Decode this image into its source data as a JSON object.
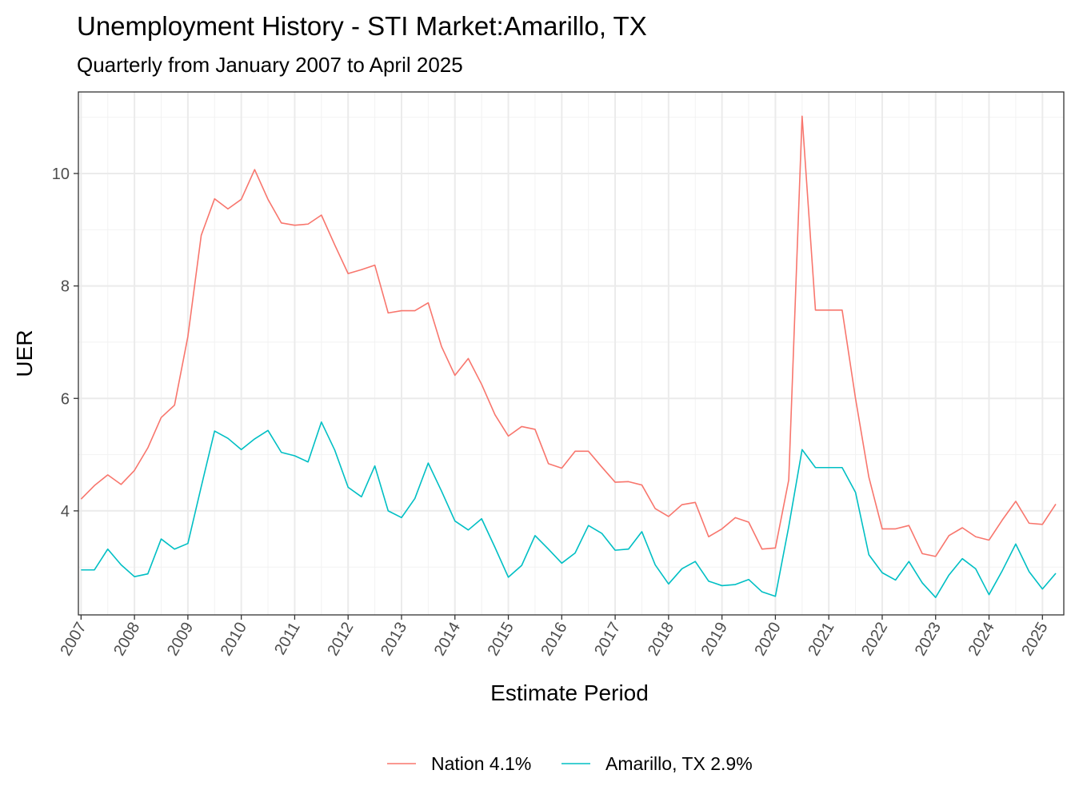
{
  "chart_data": {
    "type": "line",
    "title": "Unemployment History - STI Market:Amarillo, TX",
    "subtitle": "Quarterly from January 2007 to April 2025",
    "xlabel": "Estimate Period",
    "ylabel": "UER",
    "xlim": [
      2006.95,
      2025.4
    ],
    "ylim": [
      2.15,
      11.45
    ],
    "x_ticks": [
      "2007",
      "2008",
      "2009",
      "2010",
      "2011",
      "2012",
      "2013",
      "2014",
      "2015",
      "2016",
      "2017",
      "2018",
      "2019",
      "2020",
      "2021",
      "2022",
      "2023",
      "2024",
      "2025"
    ],
    "y_ticks": [
      "4",
      "6",
      "8",
      "10"
    ],
    "grid": true,
    "legend_position": "bottom",
    "x": [
      2007.0,
      2007.25,
      2007.5,
      2007.75,
      2008.0,
      2008.25,
      2008.5,
      2008.75,
      2009.0,
      2009.25,
      2009.5,
      2009.75,
      2010.0,
      2010.25,
      2010.5,
      2010.75,
      2011.0,
      2011.25,
      2011.5,
      2011.75,
      2012.0,
      2012.25,
      2012.5,
      2012.75,
      2013.0,
      2013.25,
      2013.5,
      2013.75,
      2014.0,
      2014.25,
      2014.5,
      2014.75,
      2015.0,
      2015.25,
      2015.5,
      2015.75,
      2016.0,
      2016.25,
      2016.5,
      2016.75,
      2017.0,
      2017.25,
      2017.5,
      2017.75,
      2018.0,
      2018.25,
      2018.5,
      2018.75,
      2019.0,
      2019.25,
      2019.5,
      2019.75,
      2020.0,
      2020.25,
      2020.5,
      2020.75,
      2021.0,
      2021.25,
      2021.5,
      2021.75,
      2022.0,
      2022.25,
      2022.5,
      2022.75,
      2023.0,
      2023.25,
      2023.5,
      2023.75,
      2024.0,
      2024.25,
      2024.5,
      2024.75,
      2025.0,
      2025.25
    ],
    "series": [
      {
        "name": "Nation 4.1%",
        "color": "#F8766D",
        "values": [
          4.21,
          4.45,
          4.64,
          4.47,
          4.72,
          5.12,
          5.66,
          5.88,
          7.1,
          8.9,
          9.55,
          9.37,
          9.54,
          10.07,
          9.54,
          9.12,
          9.08,
          9.1,
          9.26,
          8.73,
          8.22,
          8.29,
          8.37,
          7.52,
          7.56,
          7.56,
          7.7,
          6.92,
          6.41,
          6.71,
          6.25,
          5.71,
          5.33,
          5.5,
          5.45,
          4.84,
          4.76,
          5.06,
          5.06,
          4.78,
          4.51,
          4.52,
          4.46,
          4.04,
          3.9,
          4.11,
          4.15,
          3.54,
          3.68,
          3.88,
          3.8,
          3.32,
          3.34,
          4.55,
          11.02,
          7.57,
          7.57,
          7.57,
          6.0,
          4.6,
          3.68,
          3.68,
          3.74,
          3.24,
          3.19,
          3.56,
          3.7,
          3.54,
          3.48,
          3.84,
          4.17,
          3.78,
          3.76,
          4.12
        ]
      },
      {
        "name": "Amarillo, TX 2.9%",
        "color": "#00BFC4",
        "values": [
          2.95,
          2.95,
          3.32,
          3.04,
          2.83,
          2.88,
          3.5,
          3.32,
          3.42,
          4.43,
          5.42,
          5.29,
          5.09,
          5.28,
          5.43,
          5.04,
          4.98,
          4.87,
          5.58,
          5.08,
          4.42,
          4.25,
          4.8,
          4.0,
          3.88,
          4.22,
          4.85,
          4.35,
          3.82,
          3.66,
          3.86,
          3.35,
          2.82,
          3.03,
          3.56,
          3.32,
          3.07,
          3.25,
          3.74,
          3.6,
          3.3,
          3.32,
          3.63,
          3.04,
          2.7,
          2.97,
          3.1,
          2.75,
          2.67,
          2.69,
          2.78,
          2.56,
          2.48,
          3.72,
          5.09,
          4.77,
          4.77,
          4.77,
          4.33,
          3.22,
          2.9,
          2.77,
          3.1,
          2.72,
          2.46,
          2.86,
          3.15,
          2.97,
          2.51,
          2.94,
          3.41,
          2.92,
          2.61,
          2.89
        ]
      }
    ]
  }
}
